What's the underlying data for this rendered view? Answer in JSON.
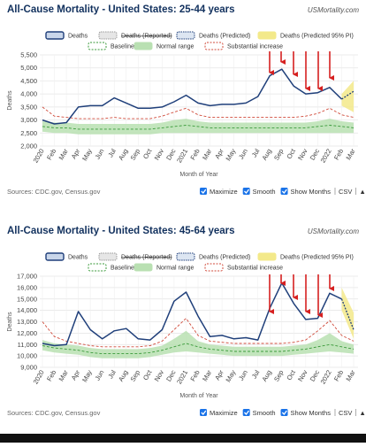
{
  "chart_data": [
    {
      "type": "line",
      "title": "All-Cause Mortality - United States: 25-44 years",
      "site": "USMortality.com",
      "y_label": "Deaths",
      "x_label": "Month of Year",
      "categories": [
        "2020",
        "Feb",
        "Mar",
        "Apr",
        "May",
        "Jun",
        "Jul",
        "Aug",
        "Sep",
        "Oct",
        "Nov",
        "Dec",
        "2021",
        "Feb",
        "Mar",
        "Apr",
        "May",
        "Jun",
        "Jul",
        "Aug",
        "Sep",
        "Oct",
        "Nov",
        "Dec",
        "2022",
        "Feb",
        "Mar"
      ],
      "ylim": [
        2000,
        5500
      ],
      "yticks": [
        {
          "value": 2000,
          "label": "2,000"
        },
        {
          "value": 2500,
          "label": "2,500"
        },
        {
          "value": 3000,
          "label": "3,000"
        },
        {
          "value": 3500,
          "label": "3,500"
        },
        {
          "value": 4000,
          "label": "4,000"
        },
        {
          "value": 4500,
          "label": "4,500"
        },
        {
          "value": 5000,
          "label": "5,000"
        },
        {
          "value": 5500,
          "label": "5,500"
        }
      ],
      "grid": true,
      "series": [
        {
          "name": "Deaths",
          "color": "#1f3f7a",
          "style": "line",
          "values": [
            3000,
            2850,
            2900,
            3500,
            3550,
            3550,
            3850,
            3650,
            3450,
            3450,
            3500,
            3700,
            3950,
            3650,
            3550,
            3600,
            3600,
            3650,
            3900,
            4700,
            4950,
            4300,
            4000,
            4050,
            4250,
            3800,
            null
          ]
        },
        {
          "name": "Deaths (Reported)",
          "color": "#999999",
          "style": "hidden"
        },
        {
          "name": "Deaths (Predicted)",
          "color": "#1f3f7a",
          "style": "dotted",
          "values": [
            null,
            null,
            null,
            null,
            null,
            null,
            null,
            null,
            null,
            null,
            null,
            null,
            null,
            null,
            null,
            null,
            null,
            null,
            null,
            null,
            null,
            null,
            null,
            null,
            null,
            3800,
            4100
          ]
        },
        {
          "name": "Deaths (Predicted 95% PI)",
          "color": "#f3e98a",
          "style": "band",
          "low": [
            null,
            null,
            null,
            null,
            null,
            null,
            null,
            null,
            null,
            null,
            null,
            null,
            null,
            null,
            null,
            null,
            null,
            null,
            null,
            null,
            null,
            null,
            null,
            null,
            null,
            3550,
            3300
          ],
          "high": [
            null,
            null,
            null,
            null,
            null,
            null,
            null,
            null,
            null,
            null,
            null,
            null,
            null,
            null,
            null,
            null,
            null,
            null,
            null,
            null,
            null,
            null,
            null,
            null,
            null,
            4000,
            4500
          ]
        },
        {
          "name": "Baseline",
          "color": "#3a9a3a",
          "style": "dashed",
          "values": [
            2750,
            2700,
            2700,
            2650,
            2650,
            2650,
            2650,
            2650,
            2650,
            2650,
            2700,
            2750,
            2800,
            2750,
            2700,
            2700,
            2700,
            2700,
            2700,
            2700,
            2700,
            2700,
            2700,
            2750,
            2800,
            2750,
            2700
          ]
        },
        {
          "name": "Normal range",
          "color": "#b9e0b2",
          "style": "band",
          "low": [
            2550,
            2500,
            2500,
            2450,
            2450,
            2450,
            2450,
            2450,
            2450,
            2450,
            2500,
            2500,
            2500,
            2500,
            2500,
            2500,
            2500,
            2500,
            2500,
            2500,
            2500,
            2500,
            2500,
            2500,
            2500,
            2500,
            2500
          ],
          "high": [
            2950,
            2900,
            2900,
            2850,
            2850,
            2850,
            2850,
            2850,
            2850,
            2850,
            2900,
            3000,
            3050,
            2950,
            2900,
            2900,
            2900,
            2900,
            2900,
            2900,
            2900,
            2900,
            2900,
            2950,
            3050,
            2950,
            2900
          ]
        },
        {
          "name": "Substantial increase",
          "color": "#d04a3a",
          "style": "dashed",
          "values": [
            3500,
            3150,
            3100,
            3050,
            3050,
            3050,
            3100,
            3050,
            3050,
            3050,
            3150,
            3300,
            3450,
            3200,
            3100,
            3100,
            3100,
            3100,
            3100,
            3100,
            3100,
            3100,
            3150,
            3250,
            3450,
            3200,
            3100
          ]
        }
      ],
      "source": "Sources: CDC.gov, Census.gov",
      "controls": [
        "Maximize",
        "Smooth",
        "Show Months"
      ],
      "links": [
        "CSV",
        "▲"
      ]
    },
    {
      "type": "line",
      "title": "All-Cause Mortality - United States: 45-64 years",
      "site": "USMortality.com",
      "y_label": "Deaths",
      "x_label": "Month of Year",
      "categories": [
        "2020",
        "Feb",
        "Mar",
        "Apr",
        "May",
        "Jun",
        "Jul",
        "Aug",
        "Sep",
        "Oct",
        "Nov",
        "Dec",
        "2021",
        "Feb",
        "Mar",
        "Apr",
        "May",
        "Jun",
        "Jul",
        "Aug",
        "Sep",
        "Oct",
        "Nov",
        "Dec",
        "2022",
        "Feb",
        "Mar"
      ],
      "ylim": [
        9000,
        17000
      ],
      "yticks": [
        {
          "value": 9000,
          "label": "9,000"
        },
        {
          "value": 10000,
          "label": "10,000"
        },
        {
          "value": 11000,
          "label": "11,000"
        },
        {
          "value": 12000,
          "label": "12,000"
        },
        {
          "value": 13000,
          "label": "13,000"
        },
        {
          "value": 14000,
          "label": "14,000"
        },
        {
          "value": 15000,
          "label": "15,000"
        },
        {
          "value": 16000,
          "label": "16,000"
        },
        {
          "value": 17000,
          "label": "17,000"
        }
      ],
      "grid": true,
      "series": [
        {
          "name": "Deaths",
          "color": "#1f3f7a",
          "style": "line",
          "values": [
            11100,
            10900,
            11000,
            13900,
            12300,
            11500,
            12200,
            12400,
            11500,
            11400,
            12300,
            14800,
            15600,
            13500,
            11700,
            11800,
            11500,
            11600,
            11400,
            14200,
            16400,
            14600,
            13200,
            13300,
            15500,
            15000,
            null
          ]
        },
        {
          "name": "Deaths (Reported)",
          "color": "#999999",
          "style": "hidden"
        },
        {
          "name": "Deaths (Predicted)",
          "color": "#1f3f7a",
          "style": "dotted",
          "values": [
            null,
            null,
            null,
            null,
            null,
            null,
            null,
            null,
            null,
            null,
            null,
            null,
            null,
            null,
            null,
            null,
            null,
            null,
            null,
            null,
            null,
            null,
            null,
            null,
            null,
            15000,
            12300
          ]
        },
        {
          "name": "Deaths (Predicted 95% PI)",
          "color": "#f3e98a",
          "style": "band",
          "low": [
            null,
            null,
            null,
            null,
            null,
            null,
            null,
            null,
            null,
            null,
            null,
            null,
            null,
            null,
            null,
            null,
            null,
            null,
            null,
            null,
            null,
            null,
            null,
            null,
            null,
            14000,
            11500
          ],
          "high": [
            null,
            null,
            null,
            null,
            null,
            null,
            null,
            null,
            null,
            null,
            null,
            null,
            null,
            null,
            null,
            null,
            null,
            null,
            null,
            null,
            null,
            null,
            null,
            null,
            null,
            16000,
            13800
          ]
        },
        {
          "name": "Baseline",
          "color": "#3a9a3a",
          "style": "dashed",
          "values": [
            10900,
            10700,
            10600,
            10500,
            10300,
            10200,
            10200,
            10200,
            10200,
            10300,
            10500,
            10800,
            11100,
            10800,
            10600,
            10500,
            10400,
            10400,
            10400,
            10400,
            10400,
            10500,
            10600,
            10800,
            11000,
            10800,
            10600
          ]
        },
        {
          "name": "Normal range",
          "color": "#b9e0b2",
          "style": "band",
          "low": [
            10500,
            10300,
            10200,
            10100,
            9900,
            9800,
            9800,
            9800,
            9800,
            9900,
            10100,
            10300,
            10400,
            10300,
            10200,
            10100,
            10000,
            10000,
            10000,
            10000,
            10000,
            10100,
            10200,
            10300,
            10400,
            10300,
            10200
          ],
          "high": [
            11400,
            11100,
            11000,
            10900,
            10700,
            10600,
            10600,
            10600,
            10600,
            10700,
            10900,
            11500,
            12200,
            11300,
            11000,
            10900,
            10800,
            10800,
            10800,
            10800,
            10800,
            10900,
            11000,
            11400,
            12000,
            11300,
            11000
          ]
        },
        {
          "name": "Substantial increase",
          "color": "#d04a3a",
          "style": "dashed",
          "values": [
            13000,
            11700,
            11300,
            11100,
            10900,
            10800,
            10800,
            10800,
            10800,
            10900,
            11300,
            12300,
            13300,
            11800,
            11300,
            11200,
            11100,
            11100,
            11100,
            11100,
            11100,
            11200,
            11400,
            12200,
            13100,
            11800,
            11300
          ]
        }
      ],
      "source": "Sources: CDC.gov, Census.gov",
      "controls": [
        "Maximize",
        "Smooth",
        "Show Months"
      ],
      "links": [
        "CSV",
        "▲"
      ]
    }
  ]
}
